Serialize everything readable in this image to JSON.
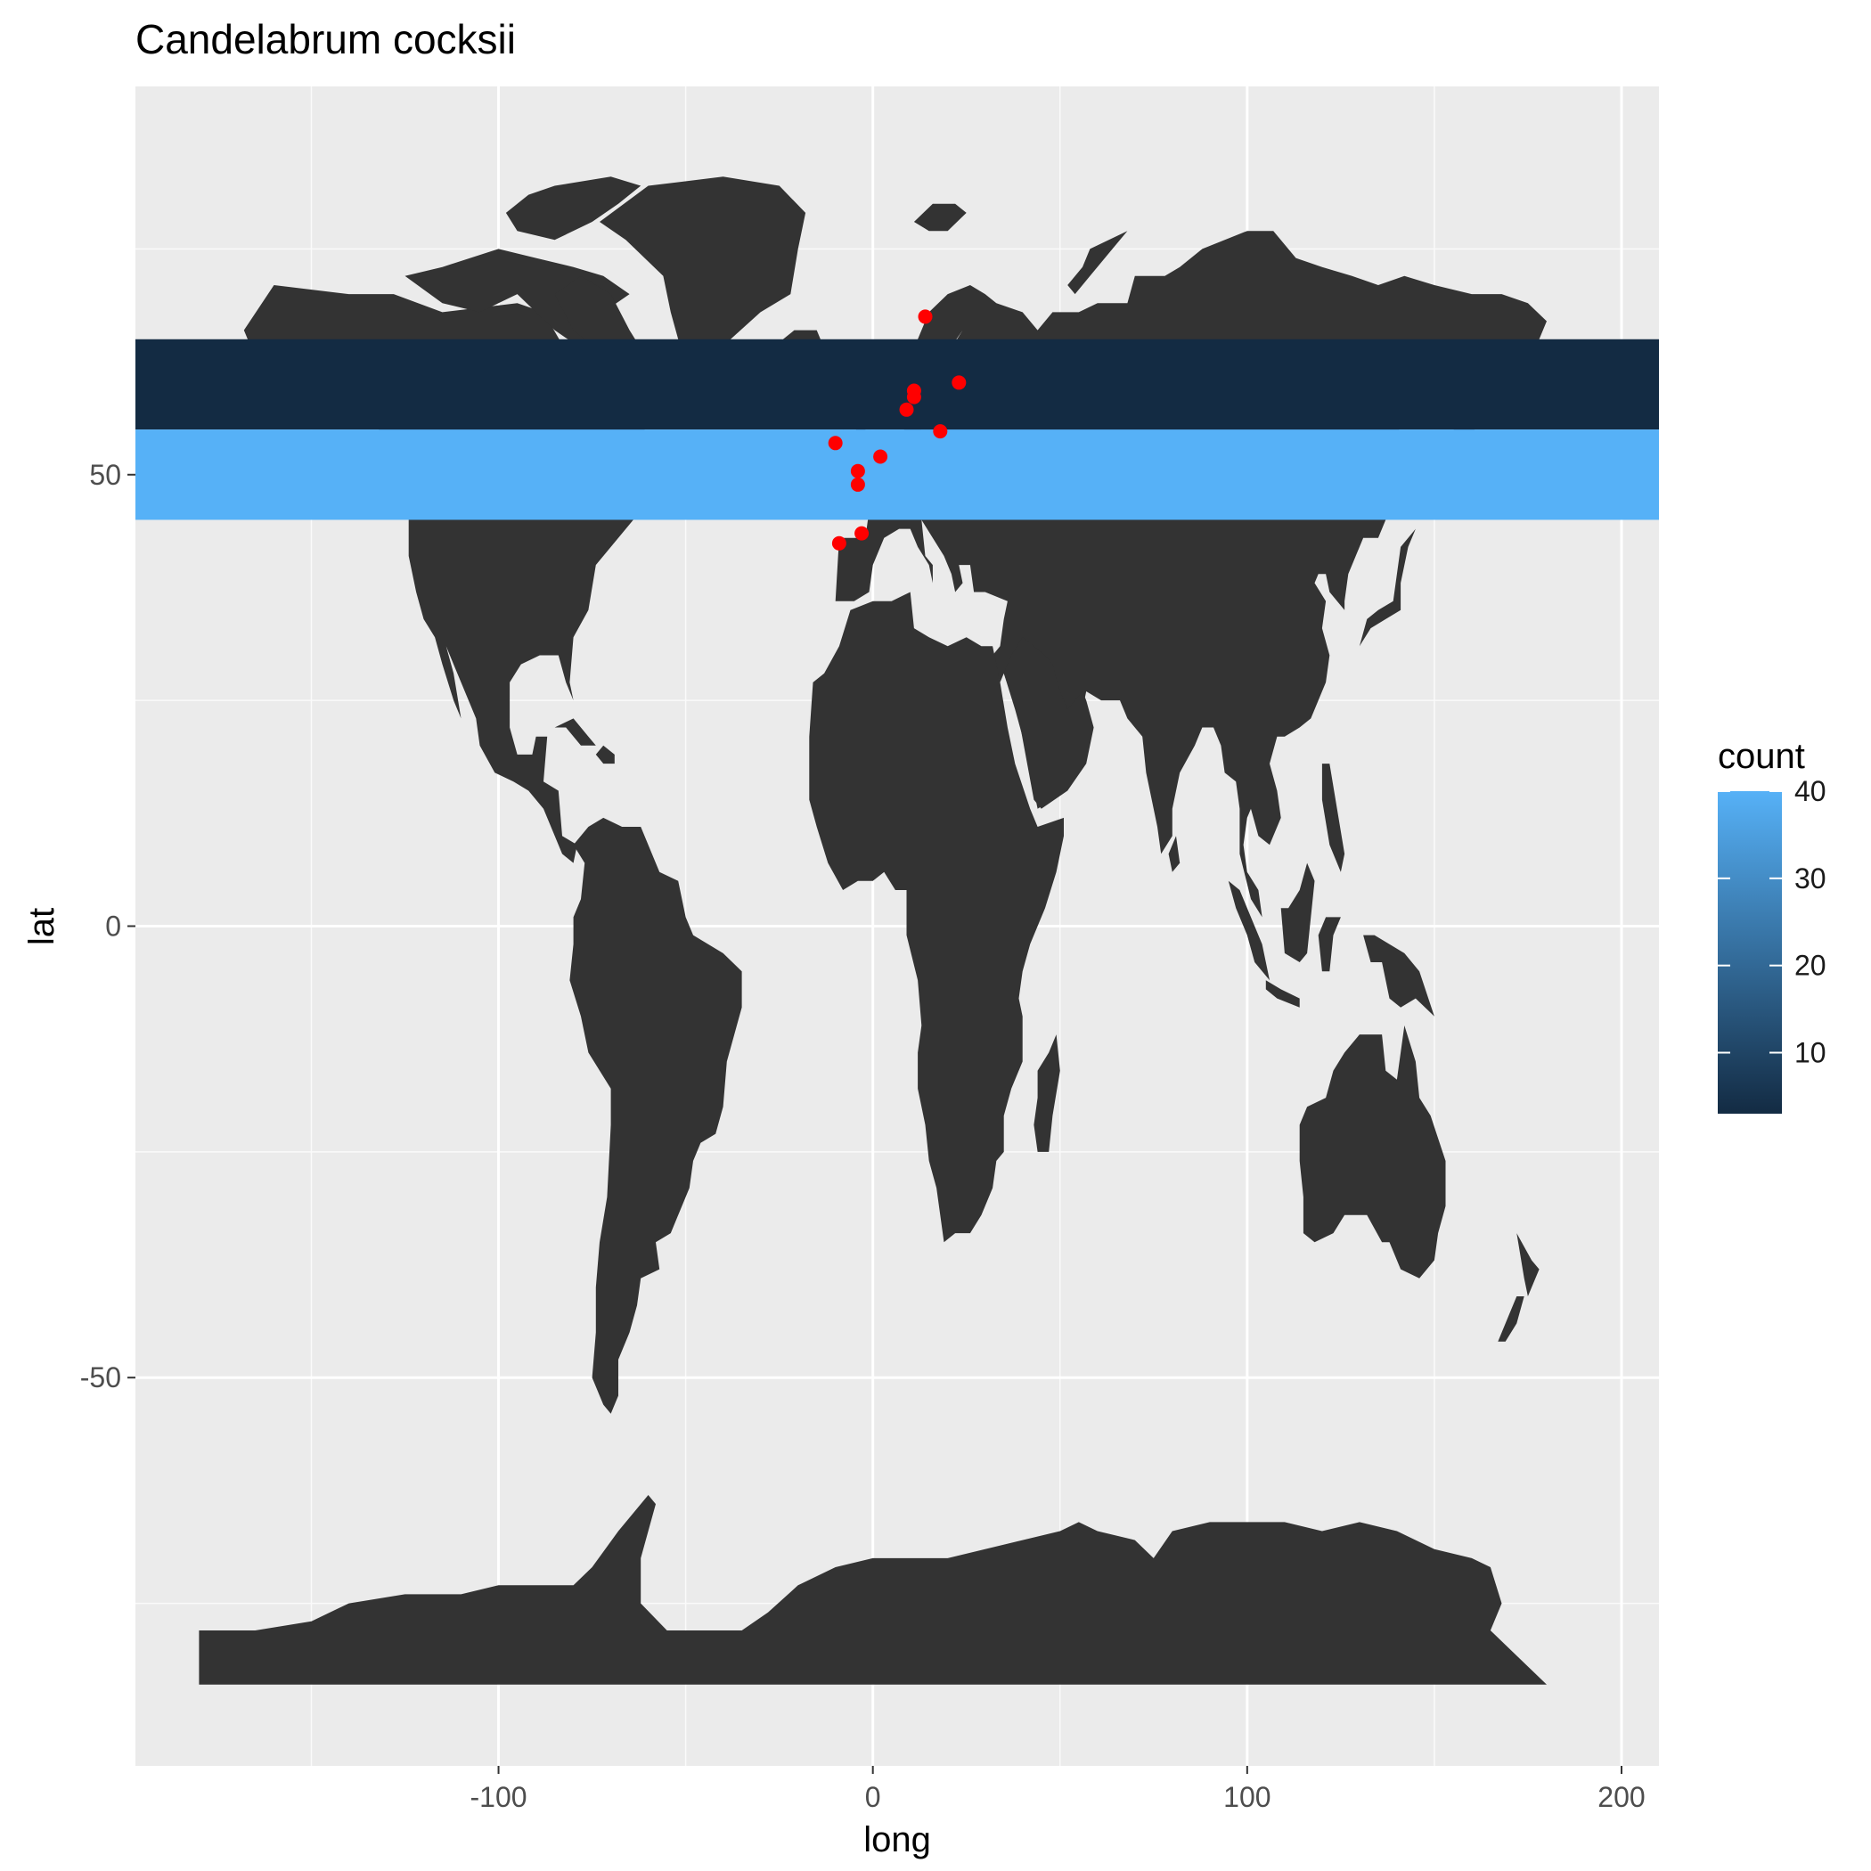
{
  "chart_data": {
    "type": "map",
    "title": "Candelabrum cocksii",
    "xlabel": "long",
    "ylabel": "lat",
    "xlim": [
      -197,
      210
    ],
    "ylim": [
      -93,
      93
    ],
    "x_ticks": [
      -100,
      0,
      100,
      200
    ],
    "x_tick_labels": [
      "-100",
      "0",
      "100",
      "200"
    ],
    "y_ticks": [
      -50,
      0,
      50
    ],
    "y_tick_labels": [
      "-50",
      "0",
      "50"
    ],
    "x_minor_ticks": [
      -150,
      -50,
      50,
      150
    ],
    "y_minor_ticks": [
      -75,
      -25,
      25,
      75
    ],
    "grid": true,
    "panel_color": "#ebebeb",
    "land_color": "#333333",
    "point_color": "#ff0000",
    "bands": [
      {
        "lat_min": 55,
        "lat_max": 65,
        "count": 3,
        "color": "#132b43"
      },
      {
        "lat_min": 45,
        "lat_max": 55,
        "count": 40,
        "color": "#56b1f7"
      }
    ],
    "points": [
      {
        "long": 14,
        "lat": 67.5
      },
      {
        "long": 23,
        "lat": 60.2
      },
      {
        "long": 11,
        "lat": 59.3
      },
      {
        "long": 11,
        "lat": 58.6
      },
      {
        "long": 9,
        "lat": 57.2
      },
      {
        "long": 18,
        "lat": 54.8
      },
      {
        "long": -10,
        "lat": 53.5
      },
      {
        "long": 2,
        "lat": 52
      },
      {
        "long": -4,
        "lat": 50.4
      },
      {
        "long": -4,
        "lat": 48.9
      },
      {
        "long": -3,
        "lat": 43.5
      },
      {
        "long": -9,
        "lat": 42.4
      }
    ],
    "legend": {
      "title": "count",
      "position": "right",
      "min": 3,
      "max": 40,
      "color_low": "#132b43",
      "color_high": "#56b1f7",
      "breaks": [
        10,
        20,
        30,
        40
      ],
      "break_labels": [
        "10",
        "20",
        "30",
        "40"
      ]
    }
  }
}
